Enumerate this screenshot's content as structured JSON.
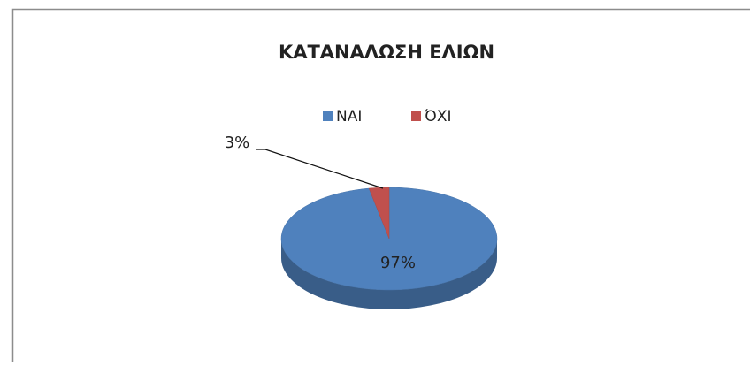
{
  "chart_data": {
    "type": "pie",
    "title": "ΚΑΤΑΝΑΛΩΣΗ ΕΛΙΩΝ",
    "categories": [
      "ΝΑΙ",
      "ΌΧΙ"
    ],
    "values": [
      97,
      3
    ],
    "value_labels": [
      "97%",
      "3%"
    ],
    "colors": [
      "#4f81bd",
      "#c0504d"
    ],
    "legend": "top"
  }
}
